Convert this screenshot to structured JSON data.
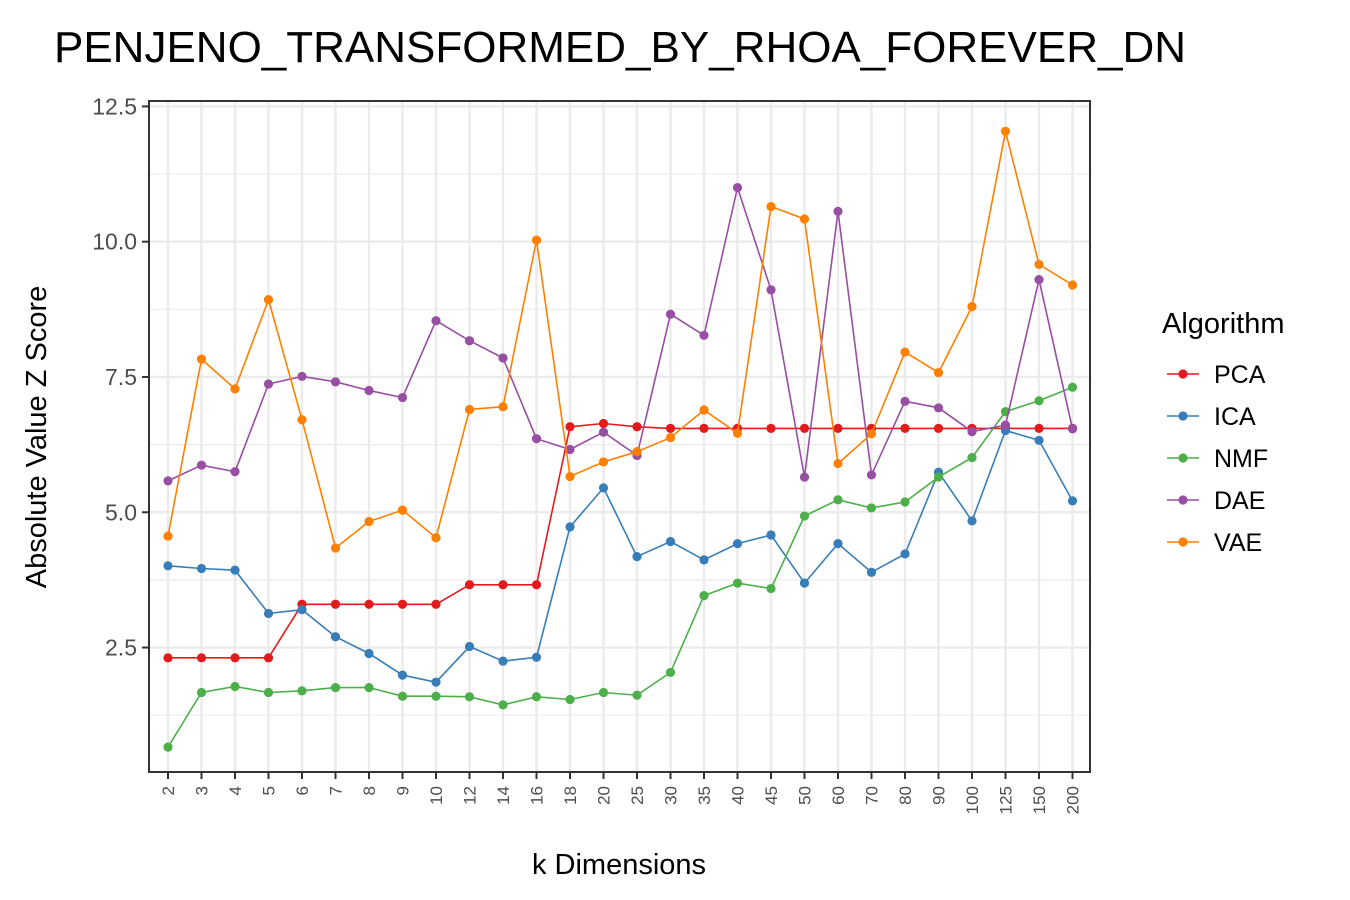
{
  "chart_data": {
    "type": "line",
    "title": "PENJENO_TRANSFORMED_BY_RHOA_FOREVER_DN",
    "xlabel": "k Dimensions",
    "ylabel": "Absolute Value Z Score",
    "x": [
      "2",
      "3",
      "4",
      "5",
      "6",
      "7",
      "8",
      "9",
      "10",
      "12",
      "14",
      "16",
      "18",
      "20",
      "25",
      "30",
      "35",
      "40",
      "45",
      "50",
      "60",
      "70",
      "80",
      "90",
      "100",
      "125",
      "150",
      "200"
    ],
    "y_ticks": [
      "2.5",
      "5.0",
      "7.5",
      "10.0",
      "12.5"
    ],
    "ylim": [
      0.2,
      12.6
    ],
    "grid": true,
    "legend": {
      "title": "Algorithm",
      "position": "right"
    },
    "series": [
      {
        "name": "PCA",
        "color": "#e41a1c",
        "values": [
          2.31,
          2.31,
          2.31,
          2.31,
          3.3,
          3.3,
          3.3,
          3.3,
          3.3,
          3.66,
          3.66,
          3.66,
          6.58,
          6.64,
          6.58,
          6.55,
          6.55,
          6.55,
          6.55,
          6.55,
          6.55,
          6.55,
          6.55,
          6.55,
          6.55,
          6.55,
          6.55,
          6.55
        ]
      },
      {
        "name": "ICA",
        "color": "#377eb8",
        "values": [
          4.01,
          3.96,
          3.93,
          3.13,
          3.2,
          2.7,
          2.39,
          1.99,
          1.86,
          2.52,
          2.25,
          2.32,
          4.73,
          5.45,
          4.18,
          4.46,
          4.12,
          4.42,
          4.58,
          3.69,
          4.42,
          3.89,
          4.23,
          5.74,
          4.84,
          6.51,
          6.33,
          5.21
        ]
      },
      {
        "name": "NMF",
        "color": "#4daf4a",
        "values": [
          0.66,
          1.67,
          1.78,
          1.67,
          1.7,
          1.76,
          1.76,
          1.6,
          1.6,
          1.59,
          1.44,
          1.59,
          1.54,
          1.67,
          1.62,
          2.04,
          3.46,
          3.69,
          3.59,
          4.93,
          5.23,
          5.08,
          5.19,
          5.65,
          6.01,
          6.86,
          7.06,
          7.31
        ]
      },
      {
        "name": "DAE",
        "color": "#984ea3",
        "values": [
          5.58,
          5.87,
          5.75,
          7.37,
          7.51,
          7.41,
          7.25,
          7.12,
          8.54,
          8.17,
          7.85,
          6.36,
          6.16,
          6.48,
          6.05,
          8.66,
          8.27,
          11.0,
          9.11,
          5.65,
          10.56,
          5.69,
          7.05,
          6.93,
          6.49,
          6.61,
          9.3,
          6.54
        ]
      },
      {
        "name": "VAE",
        "color": "#ff7f00",
        "values": [
          4.56,
          7.83,
          7.28,
          8.93,
          6.71,
          4.34,
          4.83,
          5.04,
          4.53,
          6.9,
          6.95,
          10.03,
          5.66,
          5.93,
          6.12,
          6.38,
          6.89,
          6.46,
          10.65,
          10.42,
          5.9,
          6.45,
          7.96,
          7.58,
          8.8,
          12.04,
          9.58,
          9.2
        ]
      }
    ]
  }
}
